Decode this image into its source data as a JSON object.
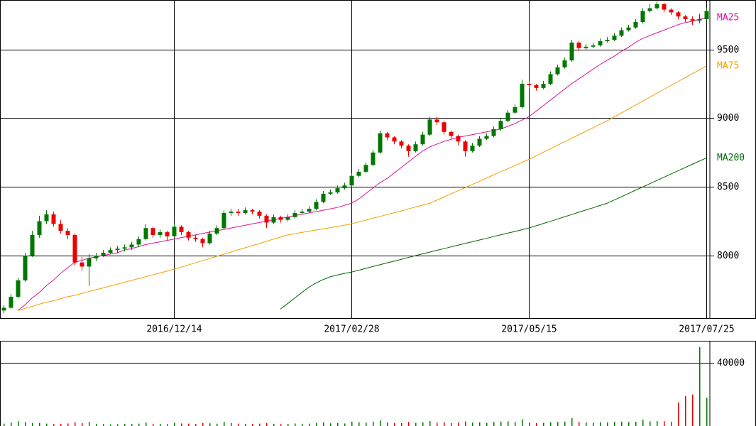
{
  "chart_data": {
    "type": "candlestick",
    "categories": [
      null,
      null,
      null,
      null,
      null,
      null,
      null,
      null,
      null,
      null,
      null,
      null,
      null,
      null,
      null,
      null,
      null,
      null,
      null,
      null,
      null,
      null,
      null,
      null,
      "2016/12/14",
      null,
      null,
      null,
      null,
      null,
      null,
      null,
      null,
      null,
      null,
      null,
      null,
      null,
      null,
      null,
      null,
      null,
      null,
      null,
      null,
      null,
      null,
      null,
      null,
      "2017/02/28",
      null,
      null,
      null,
      null,
      null,
      null,
      null,
      null,
      null,
      null,
      null,
      null,
      null,
      null,
      null,
      null,
      null,
      null,
      null,
      null,
      null,
      null,
      null,
      null,
      "2017/05/15",
      null,
      null,
      null,
      null,
      null,
      null,
      null,
      null,
      null,
      null,
      null,
      null,
      null,
      null,
      null,
      null,
      null,
      null,
      null,
      null,
      null,
      null,
      null,
      null,
      "2017/07/25"
    ],
    "ohlc": [
      [
        7600,
        7640,
        7580,
        7620
      ],
      [
        7620,
        7720,
        7610,
        7700
      ],
      [
        7700,
        7840,
        7690,
        7820
      ],
      [
        7820,
        8020,
        7810,
        8000
      ],
      [
        8000,
        8180,
        7990,
        8150
      ],
      [
        8150,
        8290,
        8130,
        8250
      ],
      [
        8250,
        8330,
        8230,
        8300
      ],
      [
        8300,
        8320,
        8210,
        8230
      ],
      [
        8230,
        8260,
        8160,
        8180
      ],
      [
        8180,
        8200,
        8120,
        8150
      ],
      [
        8150,
        8160,
        7930,
        7950
      ],
      [
        7950,
        7990,
        7890,
        7920
      ],
      [
        7920,
        8010,
        7780,
        7980
      ],
      [
        7980,
        8020,
        7960,
        8000
      ],
      [
        8000,
        8040,
        7990,
        8020
      ],
      [
        8020,
        8060,
        8010,
        8040
      ],
      [
        8040,
        8070,
        8020,
        8050
      ],
      [
        8050,
        8080,
        8030,
        8060
      ],
      [
        8060,
        8100,
        8040,
        8080
      ],
      [
        8080,
        8140,
        8060,
        8120
      ],
      [
        8120,
        8230,
        8110,
        8200
      ],
      [
        8200,
        8210,
        8130,
        8150
      ],
      [
        8150,
        8190,
        8130,
        8170
      ],
      [
        8170,
        8180,
        8110,
        8140
      ],
      [
        8140,
        8230,
        8130,
        8210
      ],
      [
        8210,
        8220,
        8150,
        8170
      ],
      [
        8170,
        8180,
        8110,
        8130
      ],
      [
        8130,
        8150,
        8100,
        8120
      ],
      [
        8120,
        8130,
        8060,
        8090
      ],
      [
        8090,
        8180,
        8080,
        8160
      ],
      [
        8160,
        8220,
        8150,
        8200
      ],
      [
        8200,
        8330,
        8190,
        8310
      ],
      [
        8310,
        8340,
        8290,
        8320
      ],
      [
        8320,
        8340,
        8290,
        8310
      ],
      [
        8310,
        8350,
        8300,
        8330
      ],
      [
        8330,
        8340,
        8300,
        8320
      ],
      [
        8320,
        8330,
        8270,
        8290
      ],
      [
        8290,
        8300,
        8200,
        8240
      ],
      [
        8240,
        8300,
        8230,
        8280
      ],
      [
        8280,
        8290,
        8240,
        8260
      ],
      [
        8260,
        8300,
        8250,
        8280
      ],
      [
        8280,
        8330,
        8270,
        8310
      ],
      [
        8310,
        8340,
        8300,
        8320
      ],
      [
        8320,
        8360,
        8310,
        8340
      ],
      [
        8340,
        8410,
        8330,
        8390
      ],
      [
        8390,
        8470,
        8380,
        8450
      ],
      [
        8450,
        8480,
        8440,
        8460
      ],
      [
        8460,
        8510,
        8450,
        8490
      ],
      [
        8490,
        8530,
        8480,
        8510
      ],
      [
        8510,
        8600,
        8500,
        8580
      ],
      [
        8580,
        8630,
        8570,
        8610
      ],
      [
        8610,
        8680,
        8600,
        8660
      ],
      [
        8660,
        8770,
        8650,
        8750
      ],
      [
        8750,
        8910,
        8740,
        8890
      ],
      [
        8890,
        8900,
        8840,
        8860
      ],
      [
        8860,
        8870,
        8810,
        8830
      ],
      [
        8830,
        8840,
        8780,
        8800
      ],
      [
        8800,
        8810,
        8720,
        8760
      ],
      [
        8760,
        8830,
        8750,
        8810
      ],
      [
        8810,
        8900,
        8800,
        8880
      ],
      [
        8880,
        9010,
        8870,
        8990
      ],
      [
        8990,
        9010,
        8950,
        8970
      ],
      [
        8970,
        8980,
        8880,
        8900
      ],
      [
        8900,
        8910,
        8850,
        8870
      ],
      [
        8870,
        8880,
        8800,
        8830
      ],
      [
        8830,
        8840,
        8720,
        8760
      ],
      [
        8760,
        8820,
        8750,
        8800
      ],
      [
        8800,
        8870,
        8790,
        8850
      ],
      [
        8850,
        8890,
        8840,
        8870
      ],
      [
        8870,
        8940,
        8860,
        8920
      ],
      [
        8920,
        9000,
        8910,
        8980
      ],
      [
        8980,
        9060,
        8970,
        9040
      ],
      [
        9040,
        9100,
        9030,
        9080
      ],
      [
        9080,
        9280,
        9070,
        9250
      ],
      [
        9250,
        9270,
        9220,
        9240
      ],
      [
        9240,
        9250,
        9200,
        9220
      ],
      [
        9220,
        9270,
        9210,
        9250
      ],
      [
        9250,
        9340,
        9240,
        9320
      ],
      [
        9320,
        9390,
        9310,
        9370
      ],
      [
        9370,
        9440,
        9360,
        9420
      ],
      [
        9420,
        9570,
        9410,
        9550
      ],
      [
        9550,
        9560,
        9490,
        9510
      ],
      [
        9510,
        9540,
        9500,
        9520
      ],
      [
        9520,
        9550,
        9510,
        9530
      ],
      [
        9530,
        9580,
        9520,
        9560
      ],
      [
        9560,
        9590,
        9550,
        9570
      ],
      [
        9570,
        9620,
        9560,
        9600
      ],
      [
        9600,
        9660,
        9590,
        9640
      ],
      [
        9640,
        9680,
        9630,
        9660
      ],
      [
        9660,
        9720,
        9650,
        9700
      ],
      [
        9700,
        9800,
        9690,
        9780
      ],
      [
        9780,
        9830,
        9770,
        9800
      ],
      [
        9800,
        9850,
        9790,
        9830
      ],
      [
        9830,
        9840,
        9770,
        9790
      ],
      [
        9790,
        9800,
        9750,
        9770
      ],
      [
        9770,
        9780,
        9720,
        9740
      ],
      [
        9740,
        9750,
        9700,
        9720
      ],
      [
        9720,
        9740,
        9680,
        9710
      ],
      [
        9710,
        9760,
        9690,
        9720
      ],
      [
        9720,
        9800,
        9710,
        9780
      ]
    ],
    "up_color": "#007700",
    "down_color": "#ee0000",
    "series": [
      {
        "name": "MA25",
        "color": "#dd1199",
        "values": [
          null,
          null,
          7600,
          7640,
          7690,
          7730,
          7780,
          7820,
          7870,
          7910,
          7950,
          7965,
          7980,
          7990,
          8000,
          8010,
          8020,
          8040,
          8050,
          8065,
          8080,
          8090,
          8100,
          8110,
          8120,
          8130,
          8140,
          8150,
          8160,
          8170,
          8180,
          8190,
          8200,
          8210,
          8220,
          8230,
          8240,
          8250,
          8260,
          8270,
          8280,
          8290,
          8300,
          8310,
          8320,
          8330,
          8340,
          8350,
          8365,
          8380,
          8410,
          8450,
          8490,
          8530,
          8560,
          8600,
          8640,
          8680,
          8720,
          8760,
          8790,
          8810,
          8830,
          8845,
          8860,
          8870,
          8880,
          8890,
          8900,
          8910,
          8920,
          8940,
          8960,
          8985,
          9010,
          9050,
          9090,
          9130,
          9170,
          9210,
          9250,
          9285,
          9320,
          9355,
          9390,
          9420,
          9450,
          9485,
          9515,
          9550,
          9580,
          9600,
          9620,
          9640,
          9660,
          9680,
          9695,
          9705,
          9720,
          9730
        ]
      },
      {
        "name": "MA75",
        "color": "#f5a000",
        "values": [
          null,
          null,
          7600,
          7615,
          7630,
          7645,
          7660,
          7670,
          7685,
          7700,
          7710,
          7724,
          7737,
          7751,
          7764,
          7778,
          7791,
          7805,
          7819,
          7832,
          7846,
          7859,
          7873,
          7886,
          7900,
          7916,
          7931,
          7947,
          7962,
          7978,
          7994,
          8009,
          8025,
          8041,
          8056,
          8072,
          8087,
          8103,
          8119,
          8134,
          8150,
          8159,
          8168,
          8177,
          8186,
          8194,
          8203,
          8212,
          8221,
          8230,
          8244,
          8257,
          8271,
          8285,
          8298,
          8312,
          8325,
          8339,
          8353,
          8366,
          8380,
          8403,
          8426,
          8449,
          8471,
          8494,
          8517,
          8540,
          8563,
          8586,
          8609,
          8631,
          8654,
          8677,
          8700,
          8725,
          8751,
          8776,
          8802,
          8827,
          8853,
          8878,
          8904,
          8929,
          8955,
          8980,
          9009,
          9037,
          9066,
          9094,
          9123,
          9151,
          9180,
          9209,
          9237,
          9266,
          9294,
          9323,
          9351,
          9380
        ]
      },
      {
        "name": "MA200",
        "color": "#006600",
        "values": [
          null,
          null,
          null,
          null,
          null,
          null,
          null,
          null,
          null,
          null,
          null,
          null,
          null,
          null,
          null,
          null,
          null,
          null,
          null,
          null,
          null,
          null,
          null,
          null,
          null,
          null,
          null,
          null,
          null,
          null,
          null,
          null,
          null,
          null,
          null,
          null,
          null,
          null,
          null,
          7610,
          7650,
          7690,
          7730,
          7770,
          7800,
          7825,
          7845,
          7858,
          7870,
          7880,
          7893,
          7906,
          7920,
          7933,
          7946,
          7959,
          7972,
          7986,
          7999,
          8012,
          8025,
          8038,
          8050,
          8063,
          8075,
          8088,
          8100,
          8113,
          8125,
          8138,
          8150,
          8163,
          8175,
          8188,
          8200,
          8216,
          8233,
          8249,
          8265,
          8282,
          8298,
          8315,
          8331,
          8347,
          8364,
          8380,
          8404,
          8427,
          8451,
          8475,
          8498,
          8522,
          8546,
          8569,
          8593,
          8616,
          8640,
          8664,
          8687,
          8711
        ]
      }
    ],
    "ylim": [
      7545,
      9860
    ],
    "yticks": [
      8000,
      8500,
      9000,
      9500
    ],
    "volume": {
      "values": [
        1500,
        2200,
        3000,
        2500,
        1800,
        2000,
        1500,
        1200,
        1400,
        1600,
        2400,
        1800,
        2600,
        1400,
        1200,
        1000,
        1100,
        1300,
        1200,
        1500,
        2200,
        1400,
        1300,
        1200,
        2000,
        1600,
        1500,
        1300,
        1800,
        1700,
        1500,
        2600,
        1900,
        1500,
        1400,
        1300,
        1500,
        1900,
        1400,
        1200,
        1300,
        1600,
        1400,
        1500,
        2000,
        2300,
        1700,
        1800,
        1600,
        2800,
        2400,
        2100,
        2800,
        3500,
        2200,
        1900,
        1800,
        2600,
        2000,
        2300,
        3200,
        2000,
        2400,
        1800,
        2200,
        2900,
        2100,
        2300,
        1900,
        2500,
        2800,
        2900,
        2600,
        4200,
        2300,
        1900,
        2000,
        2400,
        2600,
        2800,
        5000,
        2600,
        2200,
        2100,
        2400,
        2300,
        2600,
        2800,
        2500,
        2700,
        4000,
        2900,
        3100,
        3000,
        2700,
        15000,
        19000,
        20000,
        50000,
        18000
      ],
      "ylim": [
        0,
        54000
      ],
      "yticks": [
        40000
      ]
    }
  }
}
